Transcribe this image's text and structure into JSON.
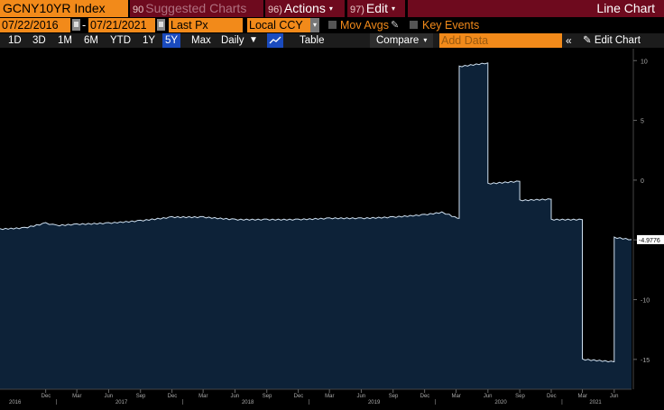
{
  "header": {
    "security": "GCNY10YR Index",
    "suggested_num": "90",
    "suggested_label": "Suggested Charts",
    "actions_num": "96)",
    "actions_label": "Actions",
    "edit_num": "97)",
    "edit_label": "Edit",
    "view_title": "Line Chart"
  },
  "settings": {
    "start_date": "07/22/2016",
    "date_sep": "-",
    "end_date": "07/21/2021",
    "field": "Last Px",
    "currency": "Local CCY",
    "mov_avgs": "Mov Avgs",
    "key_events": "Key Events"
  },
  "toolbar": {
    "ranges": [
      "1D",
      "3D",
      "1M",
      "6M",
      "YTD",
      "1Y",
      "5Y",
      "Max"
    ],
    "selected_range": "5Y",
    "frequency": "Daily",
    "table_label": "Table",
    "compare_label": "Compare",
    "add_data_placeholder": "Add Data",
    "collapse_glyph": "«",
    "edit_chart_label": "Edit Chart"
  },
  "colors": {
    "accent_orange": "#f28a1a",
    "title_bar": "#6e0a1e",
    "selected_blue": "#1a4bbf",
    "area_fill": "#0d2238",
    "line": "#cfe0f0"
  },
  "chart_data": {
    "type": "area",
    "title": "",
    "xlabel": "",
    "ylabel": "",
    "ylim": [
      -17.5,
      11
    ],
    "y_ticks": [
      "10",
      "5",
      "0",
      "-5",
      "-10",
      "-15"
    ],
    "last_value_label": "-4.9776",
    "x_month_ticks": [
      "Dec",
      "Mar",
      "Jun",
      "Sep",
      "Dec",
      "Mar",
      "Jun",
      "Sep",
      "Dec",
      "Mar",
      "Jun",
      "Sep",
      "Dec",
      "Mar",
      "Jun",
      "Sep",
      "Dec",
      "Mar",
      "Jun"
    ],
    "x_year_labels": [
      "2016",
      "2017",
      "2018",
      "2019",
      "2020",
      "2021"
    ],
    "series": [
      {
        "x": [
          "2016-07-22",
          "2016-10-01",
          "2016-12-01",
          "2017-01-01",
          "2017-03-01",
          "2017-06-01",
          "2017-09-01",
          "2017-12-01",
          "2018-03-01",
          "2018-06-01",
          "2018-09-01",
          "2018-12-01",
          "2019-03-01",
          "2019-06-01",
          "2019-09-01",
          "2019-12-01",
          "2020-01-20",
          "2020-02-10",
          "2020-03-05",
          "2020-03-10",
          "2020-05-31",
          "2020-06-01",
          "2020-08-31",
          "2020-09-01",
          "2020-11-30",
          "2020-12-01",
          "2021-02-28",
          "2021-03-01",
          "2021-05-31",
          "2021-06-01",
          "2021-07-21"
        ],
        "values": [
          -4.1,
          -4.0,
          -3.6,
          -3.8,
          -3.7,
          -3.6,
          -3.4,
          -3.1,
          -3.1,
          -3.3,
          -3.3,
          -3.3,
          -3.2,
          -3.2,
          -3.1,
          -2.9,
          -2.7,
          -2.9,
          -3.2,
          9.5,
          9.8,
          -0.3,
          -0.1,
          -1.7,
          -1.6,
          -3.3,
          -3.3,
          -15.0,
          -15.2,
          -4.8,
          -4.9776
        ]
      }
    ]
  }
}
